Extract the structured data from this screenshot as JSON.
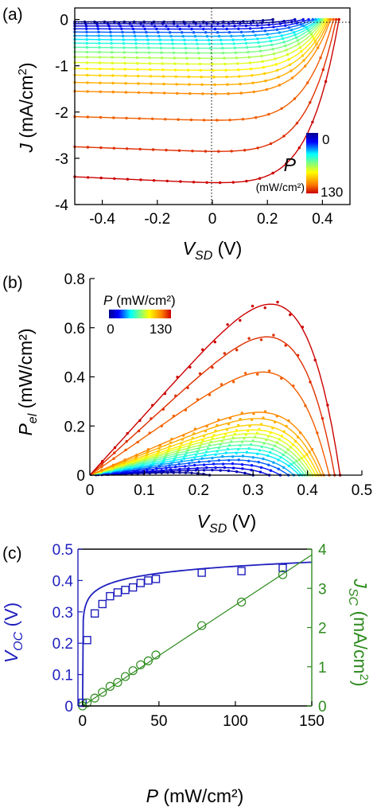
{
  "chart_data": [
    {
      "panel": "(a)",
      "type": "line",
      "xlabel_main": "V",
      "xlabel_sub": "SD",
      "xlabel_unit": " (V)",
      "ylabel_main": "J",
      "ylabel_unit": " (mA/cm",
      "ylabel_sup": "2",
      "ylabel_close": ")",
      "xlim": [
        -0.5,
        0.5
      ],
      "ylim": [
        -4,
        0.25
      ],
      "xticks": [
        "-0.4",
        "-0.2",
        "0",
        "0.2",
        "0.4"
      ],
      "xtick_values": [
        -0.4,
        -0.2,
        0,
        0.2,
        0.4
      ],
      "yticks": [
        "0",
        "-1",
        "-2",
        "-3",
        "-4"
      ],
      "ytick_values": [
        0,
        -1,
        -2,
        -3,
        -4
      ],
      "colorbar": {
        "top_label": "0",
        "bottom_label": "130",
        "var": "P",
        "unit": "(mW/cm²)"
      },
      "curves_Jsc": [
        -0.05,
        -0.09,
        -0.14,
        -0.2,
        -0.27,
        -0.35,
        -0.43,
        -0.51,
        -0.6,
        -0.7,
        -0.81,
        -0.93,
        -1.06,
        -1.2,
        -1.36,
        -1.55,
        -2.1,
        -2.75,
        -3.4
      ],
      "curves_Voc": [
        0.22,
        0.3,
        0.33,
        0.35,
        0.365,
        0.375,
        0.385,
        0.39,
        0.395,
        0.4,
        0.405,
        0.41,
        0.415,
        0.42,
        0.425,
        0.43,
        0.44,
        0.45,
        0.46
      ],
      "x_label_curves": [
        "-0.4",
        "0.46"
      ]
    },
    {
      "panel": "(b)",
      "type": "line",
      "xlabel_main": "V",
      "xlabel_sub": "SD",
      "xlabel_unit": " (V)",
      "ylabel_main": "P",
      "ylabel_sub": "el",
      "ylabel_unit": " (mW/cm²)",
      "xlim": [
        0,
        0.5
      ],
      "ylim": [
        0,
        0.8
      ],
      "xticks": [
        "0",
        "0.1",
        "0.2",
        "0.3",
        "0.4",
        "0.5"
      ],
      "xtick_values": [
        0,
        0.1,
        0.2,
        0.3,
        0.4,
        0.5
      ],
      "yticks": [
        "0",
        "0.2",
        "0.4",
        "0.6",
        "0.8"
      ],
      "ytick_values": [
        0,
        0.2,
        0.4,
        0.6,
        0.8
      ],
      "colorbar": {
        "title_var": "P",
        "title_unit": " (mW/cm²)",
        "min_label": "0",
        "max_label": "130"
      },
      "peak_values": [
        0.01,
        0.02,
        0.03,
        0.045,
        0.06,
        0.075,
        0.09,
        0.105,
        0.12,
        0.135,
        0.15,
        0.165,
        0.18,
        0.2,
        0.225,
        0.25,
        0.41,
        0.55,
        0.68
      ]
    },
    {
      "panel": "(c)",
      "type": "scatter",
      "xlabel_main": "P",
      "xlabel_unit": " (mW/cm²)",
      "ylabel_left_main": "V",
      "ylabel_left_sub": "OC",
      "ylabel_left_unit": " (V)",
      "ylabel_right_main": "J",
      "ylabel_right_sub": "SC",
      "ylabel_right_unit": " (mA/cm",
      "ylabel_right_sup": "2",
      "ylabel_right_close": ")",
      "xlim": [
        -3,
        150
      ],
      "ylim_left": [
        0,
        0.5
      ],
      "ylim_right": [
        0,
        4
      ],
      "xticks": [
        "0",
        "50",
        "100",
        "150"
      ],
      "xtick_values": [
        0,
        50,
        100,
        150
      ],
      "yticks_left": [
        "0",
        "0.1",
        "0.2",
        "0.3",
        "0.4",
        "0.5"
      ],
      "ytick_left_values": [
        0,
        0.1,
        0.2,
        0.3,
        0.4,
        0.5
      ],
      "yticks_right": [
        "0",
        "1",
        "2",
        "3",
        "4"
      ],
      "ytick_right_values": [
        0,
        1,
        2,
        3,
        4
      ],
      "colors": {
        "left": "#1f1fbf",
        "right": "#2e8b1e"
      },
      "series": [
        {
          "axis": "left",
          "marker": "square",
          "x": [
            0,
            3,
            8,
            13,
            18,
            23,
            28,
            33,
            38,
            43,
            48,
            78,
            104,
            131
          ],
          "y": [
            0.01,
            0.21,
            0.295,
            0.325,
            0.35,
            0.362,
            0.37,
            0.378,
            0.392,
            0.4,
            0.405,
            0.425,
            0.43,
            0.44
          ]
        },
        {
          "axis": "right",
          "marker": "circle",
          "x": [
            0,
            3,
            8,
            13,
            18,
            23,
            28,
            33,
            38,
            43,
            48,
            78,
            104,
            131
          ],
          "y": [
            0.0,
            0.08,
            0.2,
            0.35,
            0.5,
            0.6,
            0.75,
            0.9,
            1.05,
            1.15,
            1.3,
            2.05,
            2.65,
            3.35
          ]
        }
      ],
      "fit_left": {
        "a": 0.032,
        "b": 0.298
      },
      "fit_right": {
        "slope": 0.0257
      }
    }
  ]
}
